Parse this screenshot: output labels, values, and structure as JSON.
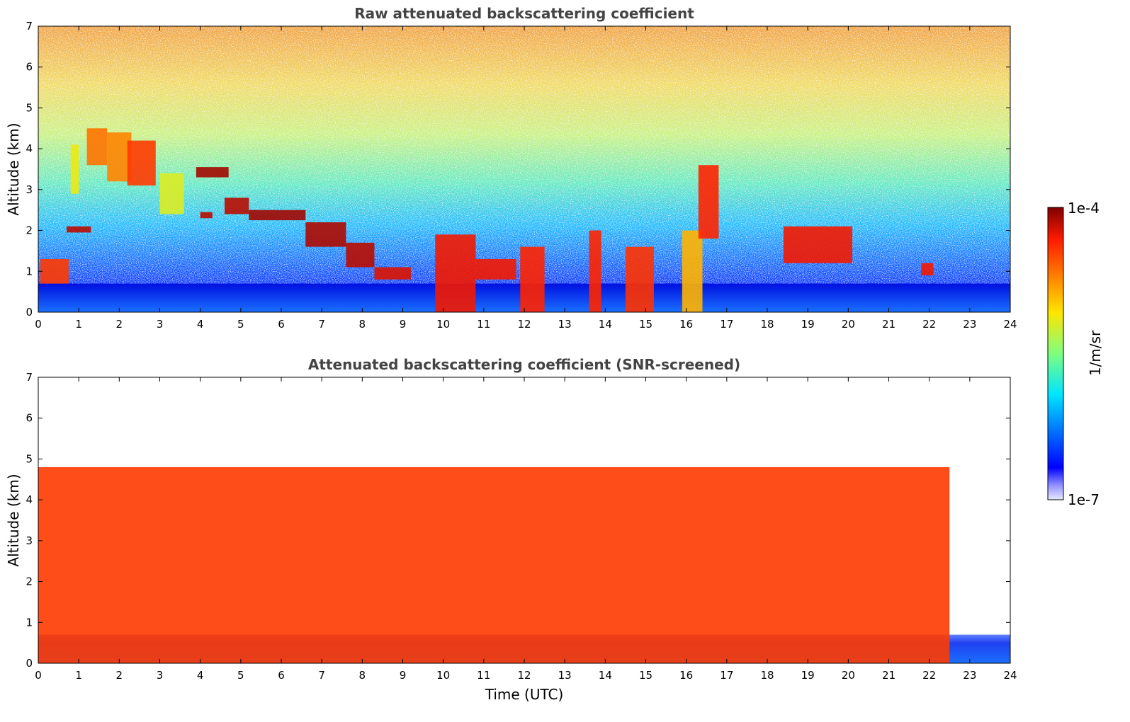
{
  "chart_data": [
    {
      "type": "heatmap",
      "title": "Raw attenuated backscattering coefficient",
      "xlabel": "",
      "ylabel": "Altitude (km)",
      "xlim": [
        0,
        24
      ],
      "ylim": [
        0,
        7
      ],
      "xticks": [
        "0",
        "1",
        "2",
        "3",
        "4",
        "5",
        "6",
        "7",
        "8",
        "9",
        "10",
        "11",
        "12",
        "13",
        "14",
        "15",
        "16",
        "17",
        "18",
        "19",
        "20",
        "21",
        "22",
        "23",
        "24"
      ],
      "yticks": [
        "0",
        "1",
        "2",
        "3",
        "4",
        "5",
        "6",
        "7"
      ],
      "color_scale": "log",
      "features": [
        {
          "label": "boundary layer",
          "t_start": 0,
          "t_end": 24,
          "alt_bottom": 0,
          "alt_top": 0.7,
          "level": 0.22
        },
        {
          "label": "cloud",
          "t_start": 0.05,
          "t_end": 0.75,
          "alt_bottom": 0.7,
          "alt_top": 1.3,
          "level": 0.85
        },
        {
          "label": "cloud",
          "t_start": 0.8,
          "t_end": 1.0,
          "alt_bottom": 2.9,
          "alt_top": 4.1,
          "level": 0.62
        },
        {
          "label": "cloud",
          "t_start": 1.2,
          "t_end": 1.7,
          "alt_bottom": 3.6,
          "alt_top": 4.5,
          "level": 0.78
        },
        {
          "label": "cloud",
          "t_start": 1.7,
          "t_end": 2.3,
          "alt_bottom": 3.2,
          "alt_top": 4.4,
          "level": 0.76
        },
        {
          "label": "cloud",
          "t_start": 2.2,
          "t_end": 2.9,
          "alt_bottom": 3.1,
          "alt_top": 4.2,
          "level": 0.85
        },
        {
          "label": "cloud",
          "t_start": 3.0,
          "t_end": 3.6,
          "alt_bottom": 2.4,
          "alt_top": 3.4,
          "level": 0.6
        },
        {
          "label": "cloud",
          "t_start": 0.7,
          "t_end": 1.3,
          "alt_bottom": 1.95,
          "alt_top": 2.1,
          "level": 0.95
        },
        {
          "label": "cloud",
          "t_start": 3.9,
          "t_end": 4.7,
          "alt_bottom": 3.3,
          "alt_top": 3.55,
          "level": 0.97
        },
        {
          "label": "cloud",
          "t_start": 4.0,
          "t_end": 4.3,
          "alt_bottom": 2.3,
          "alt_top": 2.45,
          "level": 0.95
        },
        {
          "label": "cloud",
          "t_start": 4.6,
          "t_end": 5.2,
          "alt_bottom": 2.4,
          "alt_top": 2.8,
          "level": 0.95
        },
        {
          "label": "cloud",
          "t_start": 5.2,
          "t_end": 6.6,
          "alt_bottom": 2.25,
          "alt_top": 2.5,
          "level": 0.97
        },
        {
          "label": "cloud",
          "t_start": 6.6,
          "t_end": 7.6,
          "alt_bottom": 1.6,
          "alt_top": 2.2,
          "level": 0.96
        },
        {
          "label": "cloud",
          "t_start": 7.6,
          "t_end": 8.3,
          "alt_bottom": 1.1,
          "alt_top": 1.7,
          "level": 0.95
        },
        {
          "label": "cloud",
          "t_start": 8.3,
          "t_end": 9.2,
          "alt_bottom": 0.8,
          "alt_top": 1.1,
          "level": 0.92
        },
        {
          "label": "cloud",
          "t_start": 9.8,
          "t_end": 10.8,
          "alt_bottom": 0,
          "alt_top": 1.9,
          "level": 0.9
        },
        {
          "label": "cloud",
          "t_start": 10.8,
          "t_end": 11.8,
          "alt_bottom": 0.8,
          "alt_top": 1.3,
          "level": 0.9
        },
        {
          "label": "cloud",
          "t_start": 11.9,
          "t_end": 12.5,
          "alt_bottom": 0,
          "alt_top": 1.6,
          "level": 0.88
        },
        {
          "label": "cloud",
          "t_start": 13.6,
          "t_end": 13.9,
          "alt_bottom": 0,
          "alt_top": 2.0,
          "level": 0.88
        },
        {
          "label": "cloud",
          "t_start": 14.5,
          "t_end": 15.2,
          "alt_bottom": 0,
          "alt_top": 1.6,
          "level": 0.86
        },
        {
          "label": "cloud",
          "t_start": 15.9,
          "t_end": 16.4,
          "alt_bottom": 0,
          "alt_top": 2.0,
          "level": 0.7
        },
        {
          "label": "cloud",
          "t_start": 16.3,
          "t_end": 16.8,
          "alt_bottom": 1.8,
          "alt_top": 3.6,
          "level": 0.88
        },
        {
          "label": "cloud",
          "t_start": 18.4,
          "t_end": 20.1,
          "alt_bottom": 1.2,
          "alt_top": 2.1,
          "level": 0.9
        },
        {
          "label": "cloud",
          "t_start": 21.8,
          "t_end": 22.1,
          "alt_bottom": 0.9,
          "alt_top": 1.2,
          "level": 0.9
        }
      ]
    },
    {
      "type": "heatmap",
      "title": "Attenuated backscattering coefficient (SNR-screened)",
      "xlabel": "Time (UTC)",
      "ylabel": "Altitude (km)",
      "xlim": [
        0,
        24
      ],
      "ylim": [
        0,
        7
      ],
      "xticks": [
        "0",
        "1",
        "2",
        "3",
        "4",
        "5",
        "6",
        "7",
        "8",
        "9",
        "10",
        "11",
        "12",
        "13",
        "14",
        "15",
        "16",
        "17",
        "18",
        "19",
        "20",
        "21",
        "22",
        "23",
        "24"
      ],
      "yticks": [
        "0",
        "1",
        "2",
        "3",
        "4",
        "5",
        "6",
        "7"
      ],
      "color_scale": "log",
      "features": [
        {
          "label": "boundary layer",
          "t_start": 0,
          "t_end": 24,
          "alt_bottom": 0,
          "alt_top": 0.7,
          "level": 0.2
        },
        {
          "label": "clouds",
          "t_start": 0,
          "t_end": 22.5,
          "alt_bottom": 0,
          "alt_top": 4.8,
          "level": 0.85
        }
      ]
    }
  ],
  "colorbar": {
    "label": "1/m/sr",
    "max_label": "1e-4",
    "min_label": "1e-7",
    "colormap": "jet"
  }
}
